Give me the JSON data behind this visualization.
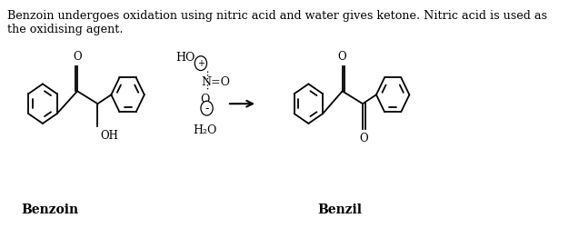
{
  "title_text": "Benzoin undergoes oxidation using nitric acid and water gives ketone. Nitric acid is used as\nthe oxidising agent.",
  "benzoin_label": "Benzoin",
  "benzil_label": "Benzil",
  "water_label": "H₂O",
  "bg_color": "#ffffff",
  "text_color": "#000000",
  "font_size_title": 9.2,
  "font_size_label": 10,
  "font_size_chem": 8.5
}
